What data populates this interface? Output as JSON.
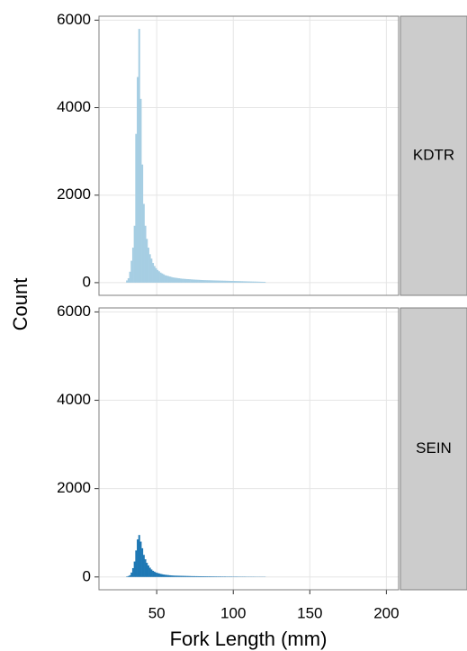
{
  "chart_data": [
    {
      "type": "histogram",
      "strip_label": "KDTR",
      "y_label": "Count",
      "color": "#a6cee3",
      "bins": [
        30,
        31,
        32,
        33,
        34,
        35,
        36,
        37,
        38,
        39,
        40,
        41,
        42,
        43,
        44,
        45,
        46,
        47,
        48,
        49,
        50,
        51,
        52,
        53,
        54,
        55,
        56,
        57,
        58,
        59,
        60,
        61,
        62,
        63,
        64,
        65,
        66,
        67,
        68,
        69,
        70,
        71,
        72,
        73,
        74,
        75,
        76,
        77,
        78,
        79,
        80,
        81,
        82,
        83,
        84,
        85,
        86,
        87,
        88,
        89,
        90,
        91,
        92,
        93,
        94,
        95,
        96,
        97,
        98,
        99,
        100,
        101,
        102,
        103,
        104,
        105,
        106,
        107,
        108,
        109,
        110,
        111,
        112,
        113,
        114,
        115,
        116,
        117,
        118,
        119,
        120,
        121
      ],
      "values": [
        50,
        100,
        250,
        500,
        800,
        1300,
        3400,
        4700,
        5800,
        4200,
        2700,
        1800,
        1300,
        1000,
        800,
        650,
        550,
        450,
        380,
        330,
        290,
        260,
        230,
        210,
        190,
        170,
        160,
        150,
        140,
        130,
        120,
        115,
        110,
        105,
        100,
        95,
        90,
        88,
        85,
        82,
        80,
        78,
        75,
        72,
        70,
        68,
        66,
        64,
        62,
        60,
        58,
        57,
        56,
        55,
        54,
        53,
        52,
        51,
        50,
        49,
        48,
        47,
        46,
        45,
        44,
        43,
        42,
        41,
        40,
        39,
        38,
        37,
        36,
        35,
        34,
        33,
        32,
        31,
        30,
        29,
        28,
        27,
        26,
        25,
        24,
        23,
        22,
        21,
        20,
        19,
        18
      ],
      "xlim": [
        12.3,
        208
      ],
      "xticks": [
        50,
        100,
        150,
        200
      ],
      "ylim": [
        -290,
        6090
      ],
      "yticks": [
        0,
        2000,
        4000,
        6000
      ],
      "grid": true
    },
    {
      "type": "histogram",
      "strip_label": "SEIN",
      "x_label": "Fork Length (mm)",
      "color": "#1f78b4",
      "bins": [
        30,
        31,
        32,
        33,
        34,
        35,
        36,
        37,
        38,
        39,
        40,
        41,
        42,
        43,
        44,
        45,
        46,
        47,
        48,
        49,
        50,
        51,
        52,
        53,
        54,
        55,
        56,
        57,
        58,
        59,
        60,
        61,
        62,
        63,
        64,
        65,
        66,
        67,
        68,
        69,
        70,
        71,
        72,
        73,
        74,
        75,
        76,
        77,
        78,
        79,
        80,
        81,
        82,
        83,
        84,
        85,
        86,
        87,
        88,
        89,
        90,
        91,
        92,
        93,
        94,
        95,
        96,
        97,
        98,
        99,
        100,
        101,
        102,
        103,
        104,
        105,
        106,
        107,
        108,
        109,
        110,
        111,
        112,
        113,
        114,
        115,
        116,
        117,
        118,
        119,
        120,
        121
      ],
      "values": [
        10,
        20,
        40,
        100,
        200,
        350,
        600,
        850,
        950,
        800,
        650,
        500,
        400,
        320,
        260,
        210,
        170,
        140,
        120,
        100,
        90,
        80,
        70,
        62,
        55,
        50,
        46,
        42,
        38,
        35,
        32,
        30,
        29,
        28,
        27,
        26,
        25,
        24,
        23,
        22,
        21,
        20,
        19,
        18,
        18,
        17,
        17,
        16,
        16,
        15,
        15,
        14,
        14,
        13,
        13,
        12,
        12,
        11,
        11,
        10,
        10,
        10,
        9,
        9,
        9,
        8,
        8,
        8,
        8,
        7,
        7,
        7,
        7,
        6,
        6,
        6,
        6,
        6,
        5,
        5,
        5,
        5,
        5,
        5,
        4,
        4,
        4,
        4,
        4,
        4,
        4
      ],
      "xlim": [
        12.3,
        208
      ],
      "xticks": [
        50,
        100,
        150,
        200
      ],
      "ylim": [
        -290,
        6090
      ],
      "yticks": [
        0,
        2000,
        4000,
        6000
      ],
      "grid": true
    }
  ]
}
